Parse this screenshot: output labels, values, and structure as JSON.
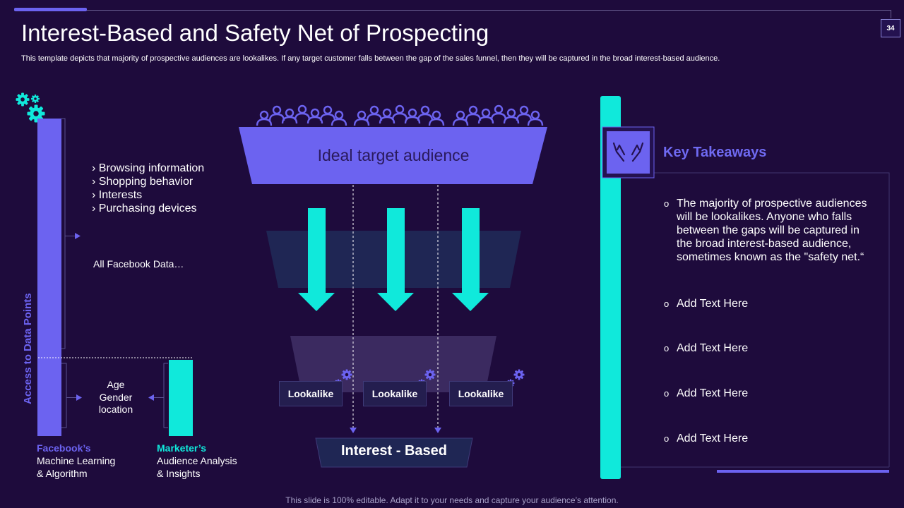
{
  "page_number": "34",
  "title": "Interest-Based and Safety Net of Prospecting",
  "subtitle": "This template depicts that majority of prospective audiences are lookalikes. If any target customer falls between the gap of the sales funnel, then they will be captured in the broad interest-based audience.",
  "left_panel": {
    "vertical_label": "Access to Data Points",
    "data_items": [
      "› Browsing information",
      "› Shopping behavior",
      "› Interests",
      "› Purchasing devices"
    ],
    "all_facebook_data": "All Facebook Data…",
    "demographics": [
      "Age",
      "Gender",
      "location"
    ],
    "facebook_label": {
      "highlight": "Facebook’s",
      "lines": [
        "Machine Learning",
        "& Algorithm"
      ]
    },
    "marketer_label": {
      "highlight": "Marketer’s",
      "lines": [
        "Audience Analysis",
        "& Insights"
      ]
    }
  },
  "funnel": {
    "top_label": "Ideal target audience",
    "lookalikes": [
      "Lookalike",
      "Lookalike",
      "Lookalike"
    ],
    "bottom_label": "Interest - Based"
  },
  "key_takeaways": {
    "title": "Key Takeaways",
    "bullets": [
      "The majority of prospective audiences will be lookalikes. Anyone who falls between the gaps will be captured in the broad interest-based audience, sometimes known as the \"safety net.“",
      "Add Text Here",
      "Add Text Here",
      "Add Text Here",
      "Add Text Here"
    ]
  },
  "footer": "This slide is 100% editable. Adapt it to your needs and capture your audience’s attention.",
  "colors": {
    "background": "#1e0b3c",
    "accent_purple": "#6c63f0",
    "accent_cyan": "#10e9db",
    "funnel_dark": "#1f2654",
    "funnel_mid": "#3b2a60"
  }
}
